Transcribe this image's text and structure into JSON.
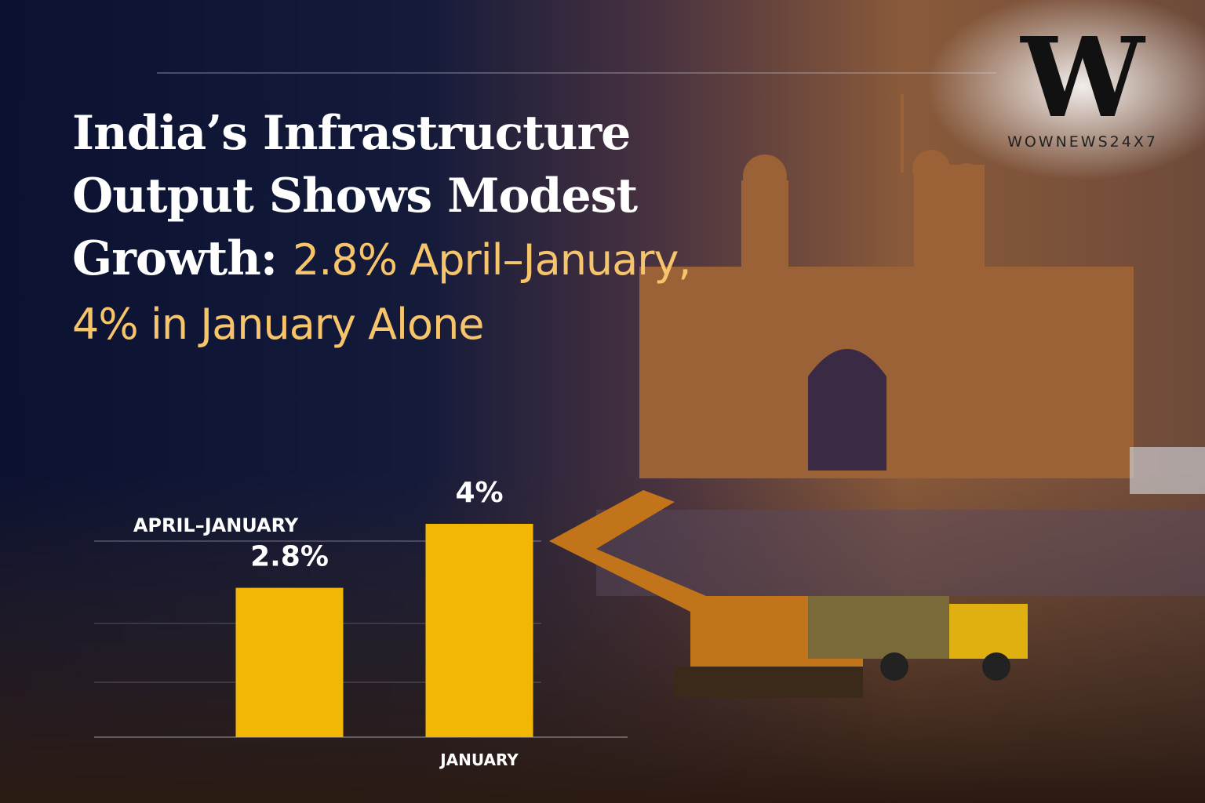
{
  "brand": {
    "logo": "W",
    "name": "WOWNEWS24X7"
  },
  "chart_data": {
    "type": "bar",
    "title": "India’s Infrastructure Output Shows Modest Growth:",
    "subtitle": "2.8% April–January, 4% in January Alone",
    "categories": [
      "APRIL–JANUARY",
      "JANUARY"
    ],
    "values": [
      2.8,
      4
    ],
    "value_labels": [
      "2.8%",
      "4%"
    ],
    "color": "#f2b705"
  }
}
